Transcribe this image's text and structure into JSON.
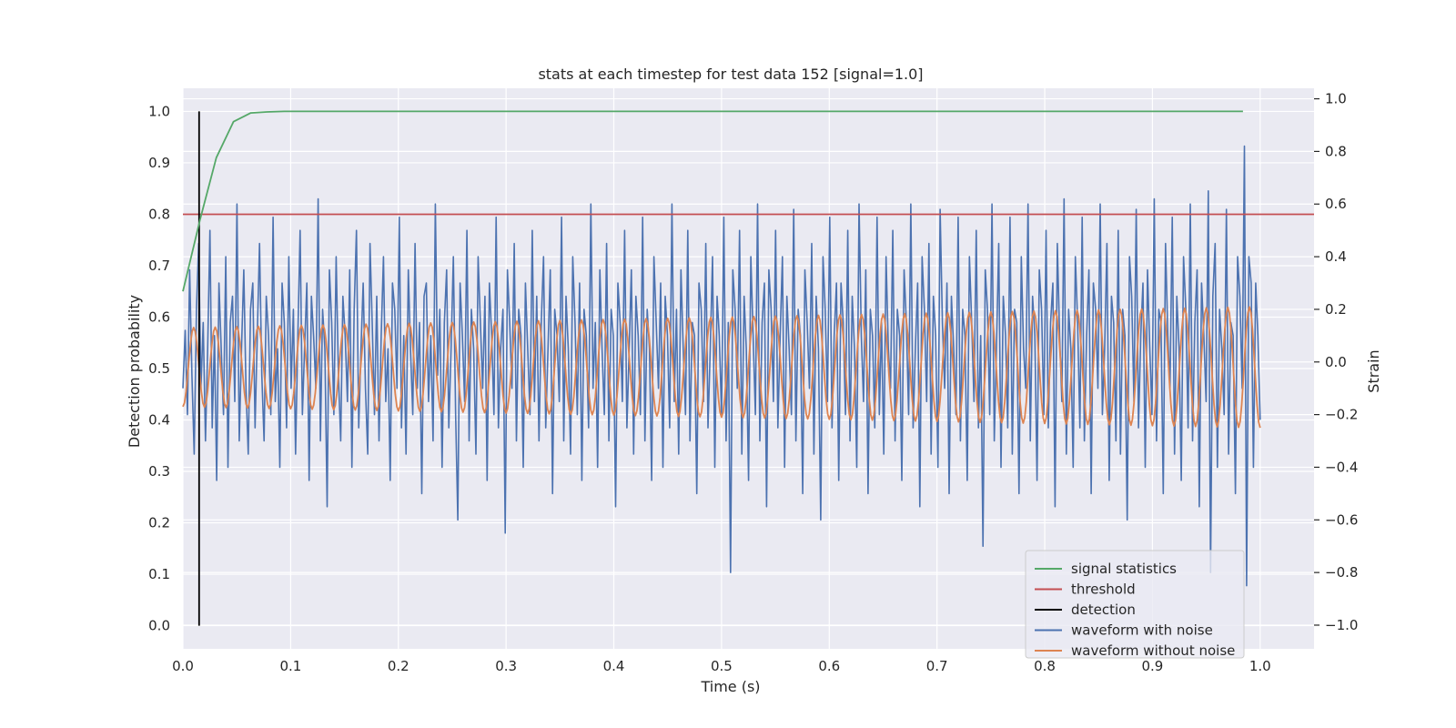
{
  "chart_data": {
    "type": "line",
    "title": "stats at each timestep for test data 152 [signal=1.0]",
    "xlabel": "Time (s)",
    "ylabel_left": "Detection probability",
    "ylabel_right": "Strain",
    "xlim": [
      0.0,
      1.05
    ],
    "ylim_left": [
      -0.045,
      1.045
    ],
    "ylim_right": [
      -1.09,
      1.04
    ],
    "x_ticks": [
      0.0,
      0.1,
      0.2,
      0.3,
      0.4,
      0.5,
      0.6,
      0.7,
      0.8,
      0.9,
      1.0
    ],
    "x_tick_labels": [
      "0.0",
      "0.1",
      "0.2",
      "0.3",
      "0.4",
      "0.5",
      "0.6",
      "0.7",
      "0.8",
      "0.9",
      "1.0"
    ],
    "y_left_ticks": [
      0.0,
      0.1,
      0.2,
      0.3,
      0.4,
      0.5,
      0.6,
      0.7,
      0.8,
      0.9,
      1.0
    ],
    "y_left_tick_labels": [
      "0.0",
      "0.1",
      "0.2",
      "0.3",
      "0.4",
      "0.5",
      "0.6",
      "0.7",
      "0.8",
      "0.9",
      "1.0"
    ],
    "y_right_ticks": [
      -1.0,
      -0.8,
      -0.6,
      -0.4,
      -0.2,
      0.0,
      0.2,
      0.4,
      0.6,
      0.8,
      1.0
    ],
    "y_right_tick_labels": [
      "−1.0",
      "−0.8",
      "−0.6",
      "−0.4",
      "−0.2",
      "0.0",
      "0.2",
      "0.4",
      "0.6",
      "0.8",
      "1.0"
    ],
    "grid": true,
    "legend_position": "bottom-right",
    "series": [
      {
        "name": "signal statistics",
        "axis": "left",
        "color": "#55a868",
        "x": [
          0.0,
          0.016,
          0.031,
          0.047,
          0.063,
          0.078,
          0.094,
          0.2,
          0.4,
          0.6,
          0.8,
          0.984
        ],
        "values": [
          0.65,
          0.79,
          0.91,
          0.98,
          0.997,
          0.999,
          1.0,
          1.0,
          1.0,
          1.0,
          1.0,
          1.0
        ]
      },
      {
        "name": "threshold",
        "axis": "left",
        "color": "#c44e52",
        "x": [
          0.0,
          1.05
        ],
        "values": [
          0.8,
          0.8
        ]
      },
      {
        "name": "detection",
        "axis": "left",
        "color": "#000000",
        "x": [
          0.015,
          0.015
        ],
        "values": [
          0.0,
          1.0
        ]
      },
      {
        "name": "waveform with noise",
        "axis": "right",
        "color": "#4c72b0",
        "x_range": [
          0.0,
          1.0
        ],
        "values": [
          -0.1,
          0.12,
          -0.2,
          0.35,
          -0.05,
          -0.35,
          0.2,
          0.45,
          -0.1,
          0.15,
          -0.3,
          0.05,
          0.5,
          -0.25,
          0.1,
          -0.45,
          0.3,
          0.05,
          -0.2,
          0.4,
          -0.4,
          0.15,
          0.25,
          -0.15,
          0.6,
          -0.3,
          0.05,
          0.35,
          -0.1,
          -0.35,
          0.2,
          0.3,
          -0.25,
          0.1,
          0.45,
          -0.05,
          -0.3,
          0.25,
          0.1,
          -0.2,
          0.55,
          -0.15,
          0.05,
          -0.4,
          0.3,
          0.15,
          -0.25,
          0.4,
          -0.1,
          0.2,
          -0.35,
          0.1,
          0.5,
          -0.2,
          0.05,
          0.3,
          -0.45,
          0.25,
          0.1,
          -0.1,
          0.62,
          -0.3,
          0.2,
          0.05,
          -0.55,
          0.35,
          0.15,
          -0.2,
          0.4,
          -0.05,
          -0.3,
          0.25,
          0.1,
          -0.15,
          0.35,
          -0.4,
          0.2,
          0.5,
          -0.25,
          0.05,
          0.3,
          -0.1,
          -0.35,
          0.45,
          0.15,
          -0.2,
          0.25,
          -0.3,
          0.1,
          0.4,
          -0.15,
          0.05,
          -0.45,
          0.3,
          0.2,
          -0.1,
          0.55,
          -0.25,
          0.1,
          -0.35,
          0.35,
          0.05,
          -0.2,
          0.45,
          -0.1,
          0.15,
          -0.5,
          0.25,
          0.3,
          -0.15,
          0.1,
          -0.3,
          0.6,
          -0.05,
          0.2,
          -0.4,
          0.15,
          0.35,
          -0.25,
          0.05,
          0.4,
          -0.2,
          -0.6,
          0.3,
          0.1,
          -0.15,
          0.5,
          -0.3,
          0.2,
          0.05,
          -0.35,
          0.4,
          0.15,
          -0.1,
          0.25,
          -0.45,
          0.3,
          0.1,
          -0.2,
          0.55,
          -0.25,
          0.05,
          0.2,
          -0.65,
          0.35,
          0.15,
          -0.1,
          0.45,
          -0.3,
          0.2,
          0.1,
          -0.4,
          0.3,
          0.05,
          -0.2,
          0.5,
          -0.15,
          0.25,
          -0.3,
          0.15,
          0.4,
          -0.25,
          0.05,
          0.35,
          -0.5,
          0.2,
          0.1,
          -0.15,
          0.55,
          -0.3,
          0.25,
          0.05,
          -0.35,
          0.4,
          0.15,
          -0.2,
          0.3,
          -0.45,
          0.2,
          0.1,
          -0.25,
          0.6,
          -0.1,
          0.15,
          -0.4,
          0.35,
          0.05,
          -0.2,
          0.45,
          -0.3,
          0.2,
          0.1,
          -0.55,
          0.3,
          0.15,
          -0.15,
          0.5,
          -0.25,
          0.05,
          0.35,
          -0.35,
          0.25,
          0.1,
          -0.2,
          0.55,
          -0.3,
          0.2,
          0.05,
          -0.45,
          0.4,
          0.15,
          -0.1,
          0.3,
          -0.4,
          0.25,
          0.1,
          -0.25,
          0.6,
          -0.15,
          0.2,
          -0.35,
          0.35,
          0.05,
          -0.2,
          0.5,
          -0.3,
          0.15,
          0.1,
          -0.5,
          0.3,
          0.2,
          -0.15,
          0.45,
          -0.25,
          0.05,
          0.4,
          -0.4,
          0.25,
          0.1,
          -0.2,
          0.55,
          -0.3,
          0.15,
          -0.8,
          0.35,
          0.2,
          -0.1,
          0.5,
          -0.35,
          0.25,
          0.05,
          -0.45,
          0.4,
          0.1,
          -0.2,
          0.6,
          -0.3,
          0.15,
          0.3,
          -0.55,
          0.35,
          0.2,
          -0.15,
          0.5,
          -0.25,
          0.1,
          0.4,
          -0.4,
          0.25,
          0.05,
          -0.2,
          0.58,
          -0.3,
          0.2,
          0.1,
          -0.5,
          0.35,
          0.15,
          -0.1,
          0.45,
          -0.35,
          0.25,
          0.05,
          -0.6,
          0.4,
          0.2,
          -0.15,
          0.55,
          -0.25,
          0.1,
          0.3,
          -0.45,
          0.3,
          0.15,
          -0.2,
          0.5,
          -0.3,
          0.25,
          0.05,
          -0.4,
          0.6,
          0.1,
          -0.15,
          0.35,
          -0.5,
          0.2,
          0.1,
          -0.25,
          0.55,
          -0.2,
          0.15,
          -0.35,
          0.4,
          0.05,
          -0.1,
          0.5,
          -0.3,
          0.2,
          0.1,
          -0.45,
          0.35,
          0.15,
          -0.2,
          0.6,
          -0.25,
          0.05,
          0.3,
          -0.55,
          0.4,
          0.2,
          -0.15,
          0.45,
          -0.35,
          0.25,
          0.1,
          -0.4,
          0.58,
          0.15,
          -0.1,
          0.3,
          -0.5,
          0.25,
          0.05,
          -0.2,
          0.55,
          -0.3,
          0.2,
          0.1,
          -0.45,
          0.4,
          0.15,
          -0.15,
          0.5,
          -0.25,
          0.1,
          -0.7,
          0.35,
          0.2,
          -0.2,
          0.6,
          -0.3,
          0.05,
          0.45,
          -0.4,
          0.25,
          0.1,
          -0.25,
          0.55,
          -0.35,
          0.2,
          0.15,
          -0.5,
          0.4,
          0.05,
          -0.1,
          0.6,
          -0.3,
          0.25,
          0.1,
          -0.45,
          0.35,
          0.2,
          -0.2,
          0.5,
          -0.25,
          0.15,
          0.3,
          -0.55,
          0.45,
          0.1,
          -0.15,
          0.62,
          -0.35,
          0.2,
          0.05,
          -0.4,
          0.4,
          0.15,
          -0.25,
          0.55,
          -0.3,
          0.1,
          0.35,
          -0.5,
          0.3,
          0.2,
          -0.1,
          0.6,
          -0.2,
          0.05,
          0.45,
          -0.45,
          0.25,
          0.15,
          -0.3,
          0.5,
          -0.35,
          0.2,
          0.1,
          -0.6,
          0.4,
          0.25,
          -0.15,
          0.58,
          -0.25,
          0.1,
          0.3,
          -0.4,
          0.35,
          0.05,
          -0.2,
          0.62,
          -0.3,
          0.2,
          0.15,
          -0.5,
          0.45,
          0.1,
          -0.1,
          0.55,
          -0.35,
          0.25,
          0.05,
          -0.45,
          0.4,
          0.2,
          -0.25,
          0.6,
          -0.3,
          0.15,
          0.35,
          -0.55,
          0.3,
          0.1,
          -0.15,
          0.65,
          -0.8,
          0.25,
          0.45,
          -0.4,
          0.2,
          0.05,
          -0.2,
          0.58,
          -0.35,
          0.15,
          0.1,
          -0.5,
          0.4,
          0.25,
          -0.1,
          0.82,
          -0.85,
          0.4,
          0.3,
          -0.4,
          0.3,
          0.1,
          -0.22
        ]
      },
      {
        "name": "waveform without noise",
        "axis": "right",
        "color": "#dd8452",
        "x_range": [
          0.0,
          1.0
        ],
        "cycles": 50,
        "amplitude_start": 0.15,
        "amplitude_end": 0.23,
        "offset": -0.02
      }
    ]
  }
}
